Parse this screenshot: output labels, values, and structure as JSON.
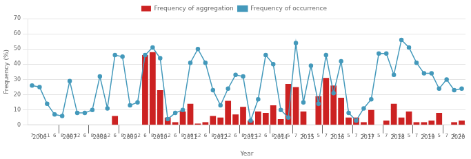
{
  "chart_data": {
    "type": "bar",
    "xlabel": "Year",
    "ylabel": "Frequency (%)",
    "categories": [
      "7",
      "9",
      "11",
      "6",
      "8",
      "10",
      "12",
      "6",
      "8",
      "10",
      "12",
      "6",
      "8",
      "10",
      "12",
      "6",
      "8",
      "10",
      "12",
      "6",
      "8",
      "10",
      "12",
      "6",
      "8",
      "10",
      "12",
      "6",
      "8",
      "10",
      "12",
      "6",
      "8",
      "10",
      "5",
      "7",
      "9",
      "11",
      "5",
      "7",
      "9",
      "11",
      "5",
      "7",
      "9",
      "11",
      "5",
      "7",
      "9",
      "11",
      "5",
      "7",
      "9",
      "11",
      "5",
      "7",
      "9",
      "11"
    ],
    "series": [
      {
        "name": "Frequency of aggregation",
        "type": "bar",
        "color": "#cc2222",
        "values": [
          0,
          0,
          0,
          0,
          0,
          0,
          0,
          0,
          0,
          0,
          0,
          6,
          0,
          0,
          0,
          46,
          48,
          23,
          5,
          2,
          9,
          14,
          1,
          2,
          6,
          5,
          16,
          7,
          12,
          3,
          9,
          8,
          13,
          4,
          27,
          25,
          9,
          0,
          19,
          31,
          26,
          18,
          5,
          5,
          2,
          10,
          0,
          3,
          14,
          5,
          9,
          2,
          2,
          3,
          8,
          0,
          2,
          3
        ]
      },
      {
        "name": "Frequency of occurrence",
        "type": "line",
        "color": "#4499bb",
        "marker": "circle",
        "values": [
          26,
          25,
          14,
          7,
          6,
          29,
          8,
          8,
          10,
          32,
          11,
          46,
          45,
          13,
          15,
          46,
          51,
          44,
          4,
          8,
          10,
          41,
          50,
          41,
          23,
          13,
          24,
          33,
          32,
          3,
          17,
          46,
          40,
          10,
          5,
          54,
          15,
          39,
          14,
          46,
          21,
          42,
          8,
          3,
          11,
          17,
          47,
          47,
          33,
          56,
          51,
          41,
          34,
          34,
          24,
          30,
          23,
          24
        ]
      }
    ],
    "ylim": [
      0,
      70
    ],
    "yticks": [
      0,
      10,
      20,
      30,
      40,
      50,
      60,
      70
    ],
    "grid": true,
    "legend": "top",
    "annotations": [
      {
        "text": "2006",
        "x": 1.0
      },
      {
        "text": "2007",
        "x": 5.0
      },
      {
        "text": "2008",
        "x": 9.0
      },
      {
        "text": "2009",
        "x": 13.0
      },
      {
        "text": "2010",
        "x": 17.0
      },
      {
        "text": "2011",
        "x": 21.0
      },
      {
        "text": "2012",
        "x": 25.0
      },
      {
        "text": "2013",
        "x": 29.0
      },
      {
        "text": "2014",
        "x": 33.0
      },
      {
        "text": "2015",
        "x": 36.5
      },
      {
        "text": "2016",
        "x": 40.5
      },
      {
        "text": "2017",
        "x": 44.5
      },
      {
        "text": "2018",
        "x": 48.5
      },
      {
        "text": "2019",
        "x": 52.5
      },
      {
        "text": "2020",
        "x": 56.5
      }
    ],
    "dividers": [
      3.5,
      7.5,
      11.5,
      15.5,
      19.5,
      23.5,
      27.5,
      31.5,
      34.5,
      38.5,
      42.5,
      46.5,
      50.5,
      54.5
    ]
  }
}
